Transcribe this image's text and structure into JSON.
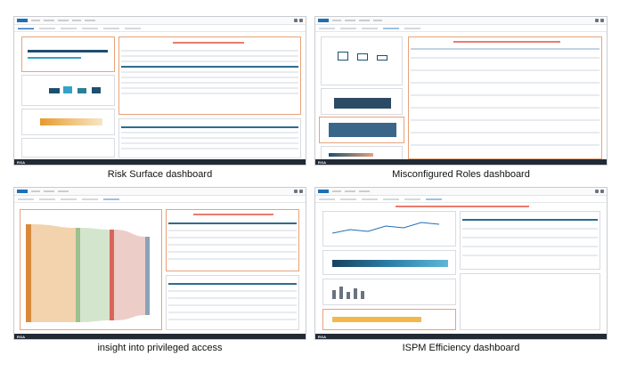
{
  "panels": [
    {
      "id": "risk-surface",
      "caption": "Risk Surface dashboard"
    },
    {
      "id": "misconfigured-roles",
      "caption": "Misconfigured Roles dashboard"
    },
    {
      "id": "privileged-access",
      "caption": "insight into privileged access"
    },
    {
      "id": "ispm-efficiency",
      "caption": "ISPM Efficiency dashboard"
    }
  ],
  "colors": {
    "accent": "#1f6fb5",
    "alert": "#e55a4a",
    "navy": "#1e4f6f",
    "orange_border": "#e7a37a"
  }
}
